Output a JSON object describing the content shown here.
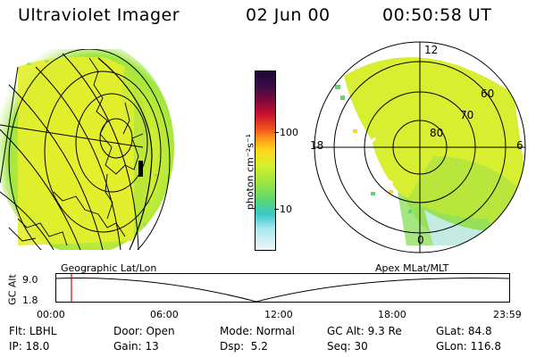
{
  "header": {
    "instrument": "Ultraviolet Imager",
    "date": "02 Jun 00",
    "time": "00:50:58 UT"
  },
  "colorbar": {
    "unit_label": "photon cm⁻²s⁻¹",
    "ticks": [
      "100",
      "10"
    ],
    "colors": [
      "#1a0a2e",
      "#3a0a4a",
      "#7a0a3a",
      "#c8102e",
      "#f0501e",
      "#ff9a1a",
      "#ffd61a",
      "#d8f02a",
      "#9ee640",
      "#5ad870",
      "#3ac8c8",
      "#a8e8ee",
      "#f0f6f8"
    ]
  },
  "polar": {
    "lat_labels": [
      "80",
      "70",
      "60"
    ],
    "mlt_labels": {
      "top": "12",
      "bottom": "0",
      "left": "18",
      "right": "6"
    }
  },
  "panel_labels": {
    "left": "Geographic Lat/Lon",
    "right": "Apex MLat/MLT"
  },
  "timeline": {
    "y_label": "GC Alt",
    "y_ticks": [
      "9.0",
      "1.8"
    ],
    "x_ticks": [
      "00:00",
      "06:00",
      "12:00",
      "18:00",
      "23:59"
    ],
    "marker_hour": 0.85
  },
  "info": {
    "row1": [
      {
        "k": "Flt:",
        "v": "LBHL"
      },
      {
        "k": "Door:",
        "v": "Open"
      },
      {
        "k": "Mode:",
        "v": "Normal"
      },
      {
        "k": "GC Alt:",
        "v": "9.3 Re"
      },
      {
        "k": "GLat:",
        "v": "84.8"
      }
    ],
    "row2": [
      {
        "k": "IP:",
        "v": "18.0"
      },
      {
        "k": "Gain:",
        "v": "13"
      },
      {
        "k": "Dsp:",
        "v": "5.2"
      },
      {
        "k": "Seq:",
        "v": "30"
      },
      {
        "k": "GLon:",
        "v": "116.8"
      }
    ]
  }
}
